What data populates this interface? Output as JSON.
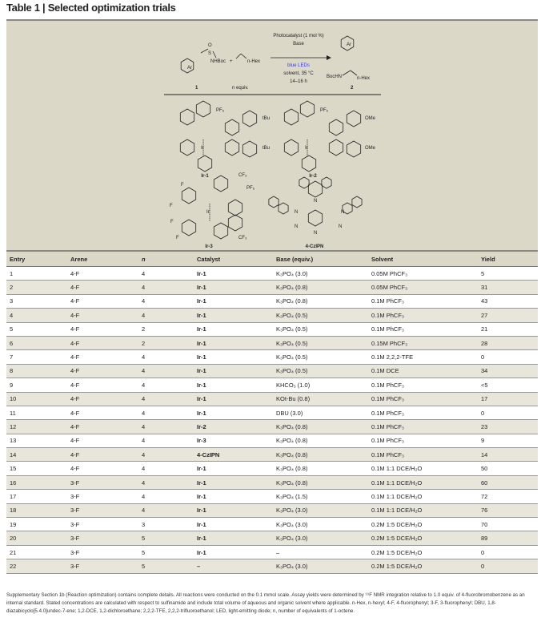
{
  "title": "Table 1 | Selected optimization trials",
  "scheme": {
    "reactant_label": "1",
    "reactant_group": "NHBoc",
    "reactant_atoms": "S",
    "oxygen": "O",
    "ar": "Ar",
    "plus": "+",
    "alkene_group": "n-Hex",
    "alkene_equiv": "n equiv.",
    "conditions": [
      "Photocatalyst (1 mol %)",
      "Base",
      "blue LEDs",
      "solvent, 35 °C",
      "14–16 h"
    ],
    "blue_color": "#3a3adb",
    "product_label": "2",
    "product_group": "BocHN",
    "product_chain": "n-Hex",
    "catalysts": [
      {
        "label": "Ir-1",
        "counterion": "PF₆",
        "subs": [
          "tBu",
          "tBu"
        ]
      },
      {
        "label": "Ir-2",
        "counterion": "PF₆",
        "subs": [
          "OMe",
          "OMe"
        ]
      },
      {
        "label": "Ir-3",
        "counterion": "PF₆",
        "subs": [
          "CF₃",
          "CF₃",
          "F",
          "F",
          "F",
          "F"
        ]
      },
      {
        "label": "4-CzIPN",
        "subs": [
          "N",
          "N",
          "N",
          "N",
          "N",
          "N"
        ]
      }
    ],
    "metal": "Ir"
  },
  "table": {
    "headers": [
      "Entry",
      "Arene",
      "n",
      "Catalyst",
      "Base (equiv.)",
      "Solvent",
      "Yield"
    ],
    "rows": [
      [
        "1",
        "4-F",
        "4",
        "Ir-1",
        "K₃PO₄ (3.0)",
        "0.05M PhCF₃",
        "5"
      ],
      [
        "2",
        "4-F",
        "4",
        "Ir-1",
        "K₃PO₄ (0.8)",
        "0.05M PhCF₃",
        "31"
      ],
      [
        "3",
        "4-F",
        "4",
        "Ir-1",
        "K₃PO₄ (0.8)",
        "0.1M PhCF₃",
        "43"
      ],
      [
        "4",
        "4-F",
        "4",
        "Ir-1",
        "K₃PO₄ (0.5)",
        "0.1M PhCF₃",
        "27"
      ],
      [
        "5",
        "4-F",
        "2",
        "Ir-1",
        "K₃PO₄ (0.5)",
        "0.1M PhCF₃",
        "21"
      ],
      [
        "6",
        "4-F",
        "2",
        "Ir-1",
        "K₃PO₄ (0.5)",
        "0.15M PhCF₃",
        "28"
      ],
      [
        "7",
        "4-F",
        "4",
        "Ir-1",
        "K₃PO₄ (0.5)",
        "0.1M 2,2,2-TFE",
        "0"
      ],
      [
        "8",
        "4-F",
        "4",
        "Ir-1",
        "K₃PO₄ (0.5)",
        "0.1M DCE",
        "34"
      ],
      [
        "9",
        "4-F",
        "4",
        "Ir-1",
        "KHCO₃ (1.0)",
        "0.1M PhCF₃",
        "<5"
      ],
      [
        "10",
        "4-F",
        "4",
        "Ir-1",
        "KOt-Bu (0.8)",
        "0.1M PhCF₃",
        "17"
      ],
      [
        "11",
        "4-F",
        "4",
        "Ir-1",
        "DBU (3.0)",
        "0.1M PhCF₃",
        "0"
      ],
      [
        "12",
        "4-F",
        "4",
        "Ir-2",
        "K₃PO₄ (0.8)",
        "0.1M PhCF₃",
        "23"
      ],
      [
        "13",
        "4-F",
        "4",
        "Ir-3",
        "K₃PO₄ (0.8)",
        "0.1M PhCF₃",
        "9"
      ],
      [
        "14",
        "4-F",
        "4",
        "4-CzIPN",
        "K₃PO₄ (0.8)",
        "0.1M PhCF₃",
        "14"
      ],
      [
        "15",
        "4-F",
        "4",
        "Ir-1",
        "K₃PO₄ (0.8)",
        "0.1M 1:1 DCE/H₂O",
        "50"
      ],
      [
        "16",
        "3-F",
        "4",
        "Ir-1",
        "K₃PO₄ (0.8)",
        "0.1M 1:1 DCE/H₂O",
        "60"
      ],
      [
        "17",
        "3-F",
        "4",
        "Ir-1",
        "K₃PO₄ (1.5)",
        "0.1M 1:1 DCE/H₂O",
        "72"
      ],
      [
        "18",
        "3-F",
        "4",
        "Ir-1",
        "K₃PO₄ (3.0)",
        "0.1M 1:1 DCE/H₂O",
        "76"
      ],
      [
        "19",
        "3-F",
        "3",
        "Ir-1",
        "K₃PO₄ (3.0)",
        "0.2M 1:5 DCE/H₂O",
        "70"
      ],
      [
        "20",
        "3-F",
        "5",
        "Ir-1",
        "K₃PO₄ (3.0)",
        "0.2M 1:5 DCE/H₂O",
        "89"
      ],
      [
        "21",
        "3-F",
        "5",
        "Ir-1",
        "–",
        "0.2M 1:5 DCE/H₂O",
        "0"
      ],
      [
        "22",
        "3-F",
        "5",
        "–",
        "K₃PO₄ (3.0)",
        "0.2M 1:5 DCE/H₂O",
        "0"
      ]
    ]
  },
  "footnote": "Supplementary Section 1b (Reaction optimization) contains complete details. All reactions were conducted on the 0.1 mmol scale. Assay yields were determined by ¹⁹F NMR integration relative to 1.0 equiv. of 4-fluorobromobenzene as an internal standard. Stated concentrations are calculated with respect to sulfinamide and include total volume of aqueous and organic solvent where applicable. n-Hex, n-hexyl; 4-F, 4-fluorophenyl; 3-F, 3-fluorophenyl; DBU, 1,8-diazabicyclo[5.4.0]undec-7-ene; 1,2-DCE, 1,2-dichloroethane; 2,2,2-TFE, 2,2,2-trifluoroethanol; LED, light-emitting diode; n, number of equivalents of 1-octene."
}
